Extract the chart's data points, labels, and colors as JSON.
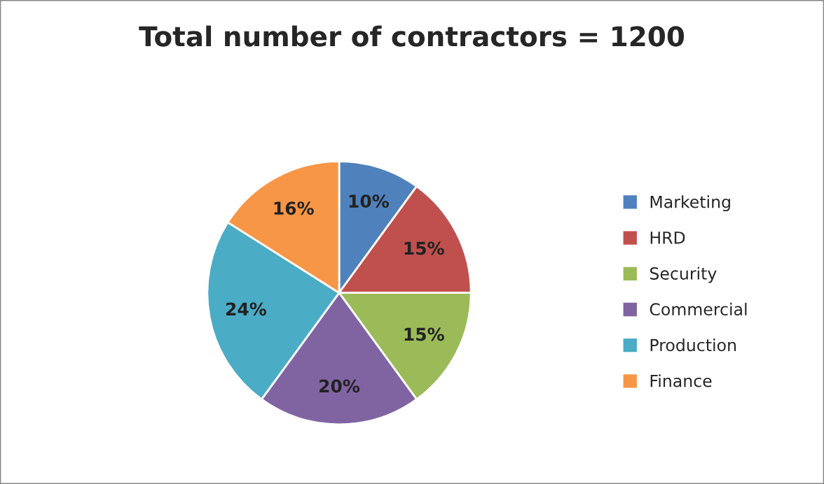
{
  "chart_data": {
    "type": "pie",
    "title": "Total number of contractors = 1200",
    "categories": [
      "Marketing",
      "HRD",
      "Security",
      "Commercial",
      "Production",
      "Finance"
    ],
    "values": [
      10,
      15,
      15,
      20,
      24,
      16
    ],
    "colors": [
      "#4f81bd",
      "#c0504d",
      "#9bbb59",
      "#8064a2",
      "#4bacc6",
      "#f79646"
    ],
    "value_labels": [
      "10%",
      "15%",
      "15%",
      "20%",
      "24%",
      "16%"
    ],
    "legend": "right"
  }
}
